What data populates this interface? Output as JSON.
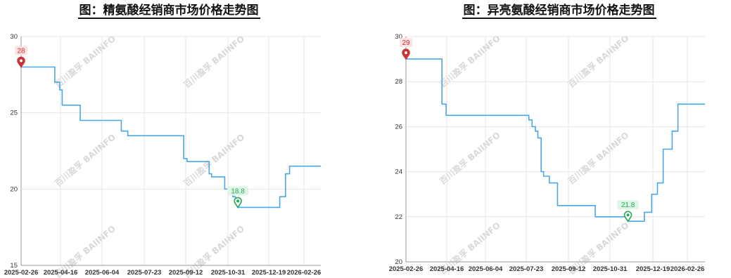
{
  "chart_data": [
    {
      "type": "line",
      "title": "图：精氨酸经销商市场价格走势图",
      "x_tick_labels": [
        "2025-02-26",
        "2025-04-16",
        "2025-06-04",
        "2025-07-23",
        "2025-09-12",
        "2025-10-31",
        "2025-12-19",
        "2026-02-26"
      ],
      "y_ticks": [
        15,
        20,
        25,
        30
      ],
      "ylim": [
        15,
        30
      ],
      "xlim": [
        "2025-02-26",
        "2026-02-26"
      ],
      "grid": true,
      "line_color": "#4aa8e8",
      "x": [
        "2025-02-26",
        "2025-04-08",
        "2025-04-11",
        "2025-04-14",
        "2025-04-17",
        "2025-04-19",
        "2025-05-09",
        "2025-06-28",
        "2025-07-06",
        "2025-09-12",
        "2025-09-16",
        "2025-10-13",
        "2025-10-16",
        "2025-10-23",
        "2025-11-01",
        "2025-11-05",
        "2025-11-11",
        "2025-11-14",
        "2025-11-17",
        "2025-11-18",
        "2026-01-07",
        "2026-01-14",
        "2026-01-19",
        "2026-01-26"
      ],
      "y": [
        28,
        27,
        27,
        26.5,
        25.5,
        25.5,
        24.5,
        23.8,
        23.5,
        22,
        21.8,
        21,
        20.8,
        20.8,
        20,
        20,
        19.5,
        19.3,
        18.8,
        18.8,
        19.5,
        21,
        21.5,
        21.5
      ],
      "annotations": [
        {
          "label": "28",
          "x": "2025-02-26",
          "y": 28,
          "kind": "max",
          "color": "#cc3333"
        },
        {
          "label": "18.8",
          "x": "2025-11-17",
          "y": 18.8,
          "kind": "min",
          "color": "#22aa55"
        }
      ],
      "watermark": "百川盈孚 BAIINFO"
    },
    {
      "type": "line",
      "title": "图：异亮氨酸经销商市场价格走势图",
      "x_tick_labels": [
        "2025-02-26",
        "2025-04-16",
        "2025-06-04",
        "2025-07-23",
        "2025-09-12",
        "2025-10-31",
        "2025-12-19",
        "2026-02-26"
      ],
      "y_ticks": [
        20,
        22,
        24,
        26,
        28,
        30
      ],
      "ylim": [
        20,
        30
      ],
      "xlim": [
        "2025-02-26",
        "2026-02-26"
      ],
      "grid": true,
      "line_color": "#4aa8e8",
      "x": [
        "2025-02-26",
        "2025-04-11",
        "2025-04-16",
        "2025-07-23",
        "2025-07-26",
        "2025-07-30",
        "2025-08-03",
        "2025-08-06",
        "2025-08-10",
        "2025-08-13",
        "2025-08-20",
        "2025-08-30",
        "2025-09-09",
        "2025-10-11",
        "2025-10-15",
        "2025-11-24",
        "2025-12-12",
        "2025-12-14",
        "2025-12-23",
        "2025-12-30",
        "2026-01-06",
        "2026-01-13",
        "2026-01-17",
        "2026-01-24",
        "2026-02-26"
      ],
      "y": [
        29,
        27,
        26.5,
        26.5,
        26.3,
        26,
        25.8,
        25.5,
        24,
        23.8,
        23.5,
        22.5,
        22.5,
        22.5,
        22,
        21.8,
        21.8,
        22.2,
        23,
        23.5,
        25,
        25,
        25.8,
        27,
        27
      ],
      "annotations": [
        {
          "label": "29",
          "x": "2025-02-26",
          "y": 29,
          "kind": "max",
          "color": "#cc3333"
        },
        {
          "label": "21.8",
          "x": "2025-11-24",
          "y": 21.8,
          "kind": "min",
          "color": "#22aa55"
        }
      ],
      "watermark": "百川盈孚 BAIINFO"
    }
  ]
}
